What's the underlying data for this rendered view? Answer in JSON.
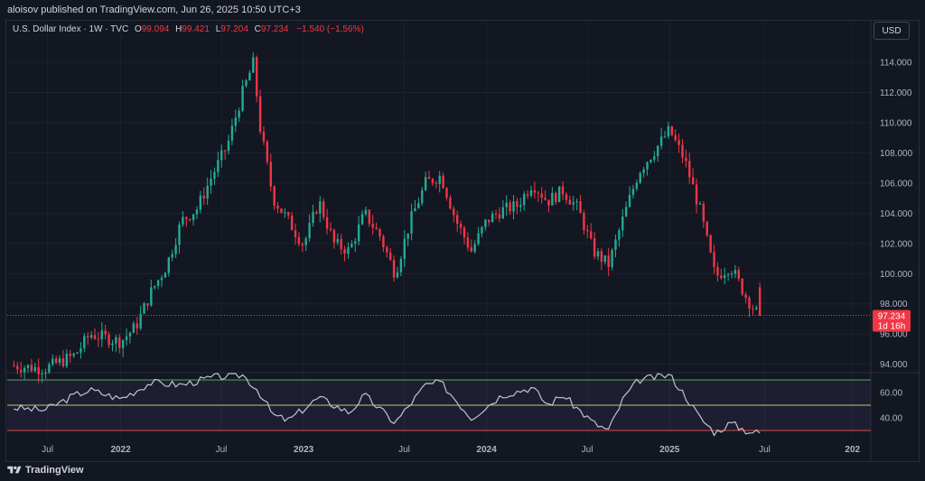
{
  "header": {
    "published": "aloisov published on TradingView.com, Jun 26, 2025 10:50 UTC+3"
  },
  "legend": {
    "symbol": "U.S. Dollar Index · 1W · TVC",
    "o_label": "O",
    "o": "99.094",
    "h_label": "H",
    "h": "99.421",
    "l_label": "L",
    "l": "97.204",
    "c_label": "C",
    "c": "97.234",
    "change": "−1.540 (−1.56%)"
  },
  "currency": "USD",
  "price_badge": {
    "value": "97.234",
    "countdown": "1d 16h"
  },
  "brand": "TradingView",
  "colors": {
    "up": "#22ab94",
    "down": "#f23645",
    "rsi": "#c0c4cc",
    "rsi_band": "#4a3b6e"
  },
  "chart_data": [
    {
      "type": "candlestick",
      "title": "",
      "y_ticks": [
        94,
        96,
        98,
        100,
        102,
        104,
        106,
        108,
        110,
        112,
        114
      ],
      "y_tick_labels": [
        "94.000",
        "96.000",
        "98.000",
        "100.000",
        "102.000",
        "104.000",
        "106.000",
        "108.000",
        "110.000",
        "112.000",
        "114.000"
      ],
      "x_tick_labels": [
        "Jul",
        "2022",
        "Jul",
        "2023",
        "Jul",
        "2024",
        "Jul",
        "2025",
        "Jul",
        "202"
      ],
      "ylim": [
        93.5,
        115.5
      ],
      "last_price": 97.234,
      "series_path": [
        [
          "2021-06",
          93.9
        ],
        [
          "2021-08",
          93.7
        ],
        [
          "2021-10",
          94.6
        ],
        [
          "2021-11",
          96.0
        ],
        [
          "2022-01",
          95.5
        ],
        [
          "2022-02",
          96.5
        ],
        [
          "2022-03",
          98.8
        ],
        [
          "2022-04",
          100.5
        ],
        [
          "2022-05",
          103.5
        ],
        [
          "2022-06",
          104.3
        ],
        [
          "2022-07",
          106.5
        ],
        [
          "2022-08",
          108.5
        ],
        [
          "2022-09",
          112.0
        ],
        [
          "2022-09-25",
          114.2
        ],
        [
          "2022-10",
          110.5
        ],
        [
          "2022-11",
          105.0
        ],
        [
          "2022-12",
          103.5
        ],
        [
          "2023-01",
          101.9
        ],
        [
          "2023-02",
          104.8
        ],
        [
          "2023-03",
          102.0
        ],
        [
          "2023-04",
          101.5
        ],
        [
          "2023-05",
          104.0
        ],
        [
          "2023-06",
          102.5
        ],
        [
          "2023-07",
          100.0
        ],
        [
          "2023-08",
          103.5
        ],
        [
          "2023-09",
          106.0
        ],
        [
          "2023-10",
          106.5
        ],
        [
          "2023-11",
          103.5
        ],
        [
          "2023-12",
          101.5
        ],
        [
          "2024-01",
          103.5
        ],
        [
          "2024-02",
          104.2
        ],
        [
          "2024-03",
          104.5
        ],
        [
          "2024-04",
          106.0
        ],
        [
          "2024-05",
          104.8
        ],
        [
          "2024-06",
          105.5
        ],
        [
          "2024-07",
          104.3
        ],
        [
          "2024-08",
          101.5
        ],
        [
          "2024-09",
          100.6
        ],
        [
          "2024-10",
          103.8
        ],
        [
          "2024-11",
          106.8
        ],
        [
          "2025-01",
          109.5
        ],
        [
          "2025-02",
          107.5
        ],
        [
          "2025-03",
          104.2
        ],
        [
          "2025-04",
          99.8
        ],
        [
          "2025-05",
          100.5
        ],
        [
          "2025-06",
          98.5
        ],
        [
          "2025-06-26",
          97.234
        ]
      ]
    },
    {
      "type": "line",
      "title": "",
      "y_tick_labels": [
        "60.00",
        "40.00"
      ],
      "ylim": [
        25,
        75
      ],
      "bands": [
        30,
        50,
        70
      ],
      "series_path": [
        [
          "2021-06",
          48
        ],
        [
          "2021-08",
          46
        ],
        [
          "2021-10",
          58
        ],
        [
          "2021-11",
          62
        ],
        [
          "2022-01",
          55
        ],
        [
          "2022-03",
          68
        ],
        [
          "2022-05",
          66
        ],
        [
          "2022-07",
          72
        ],
        [
          "2022-09",
          74
        ],
        [
          "2022-10",
          62
        ],
        [
          "2022-11",
          42
        ],
        [
          "2022-12",
          38
        ],
        [
          "2023-02",
          56
        ],
        [
          "2023-04",
          44
        ],
        [
          "2023-05",
          58
        ],
        [
          "2023-07",
          36
        ],
        [
          "2023-09",
          66
        ],
        [
          "2023-10",
          68
        ],
        [
          "2023-12",
          40
        ],
        [
          "2024-02",
          58
        ],
        [
          "2024-04",
          64
        ],
        [
          "2024-05",
          50
        ],
        [
          "2024-06",
          58
        ],
        [
          "2024-08",
          36
        ],
        [
          "2024-09",
          30
        ],
        [
          "2024-10",
          56
        ],
        [
          "2024-11",
          70
        ],
        [
          "2025-01",
          74
        ],
        [
          "2025-02",
          58
        ],
        [
          "2025-03",
          40
        ],
        [
          "2025-04",
          28
        ],
        [
          "2025-05",
          36
        ],
        [
          "2025-06",
          30
        ],
        [
          "2025-06-26",
          28
        ]
      ]
    }
  ]
}
